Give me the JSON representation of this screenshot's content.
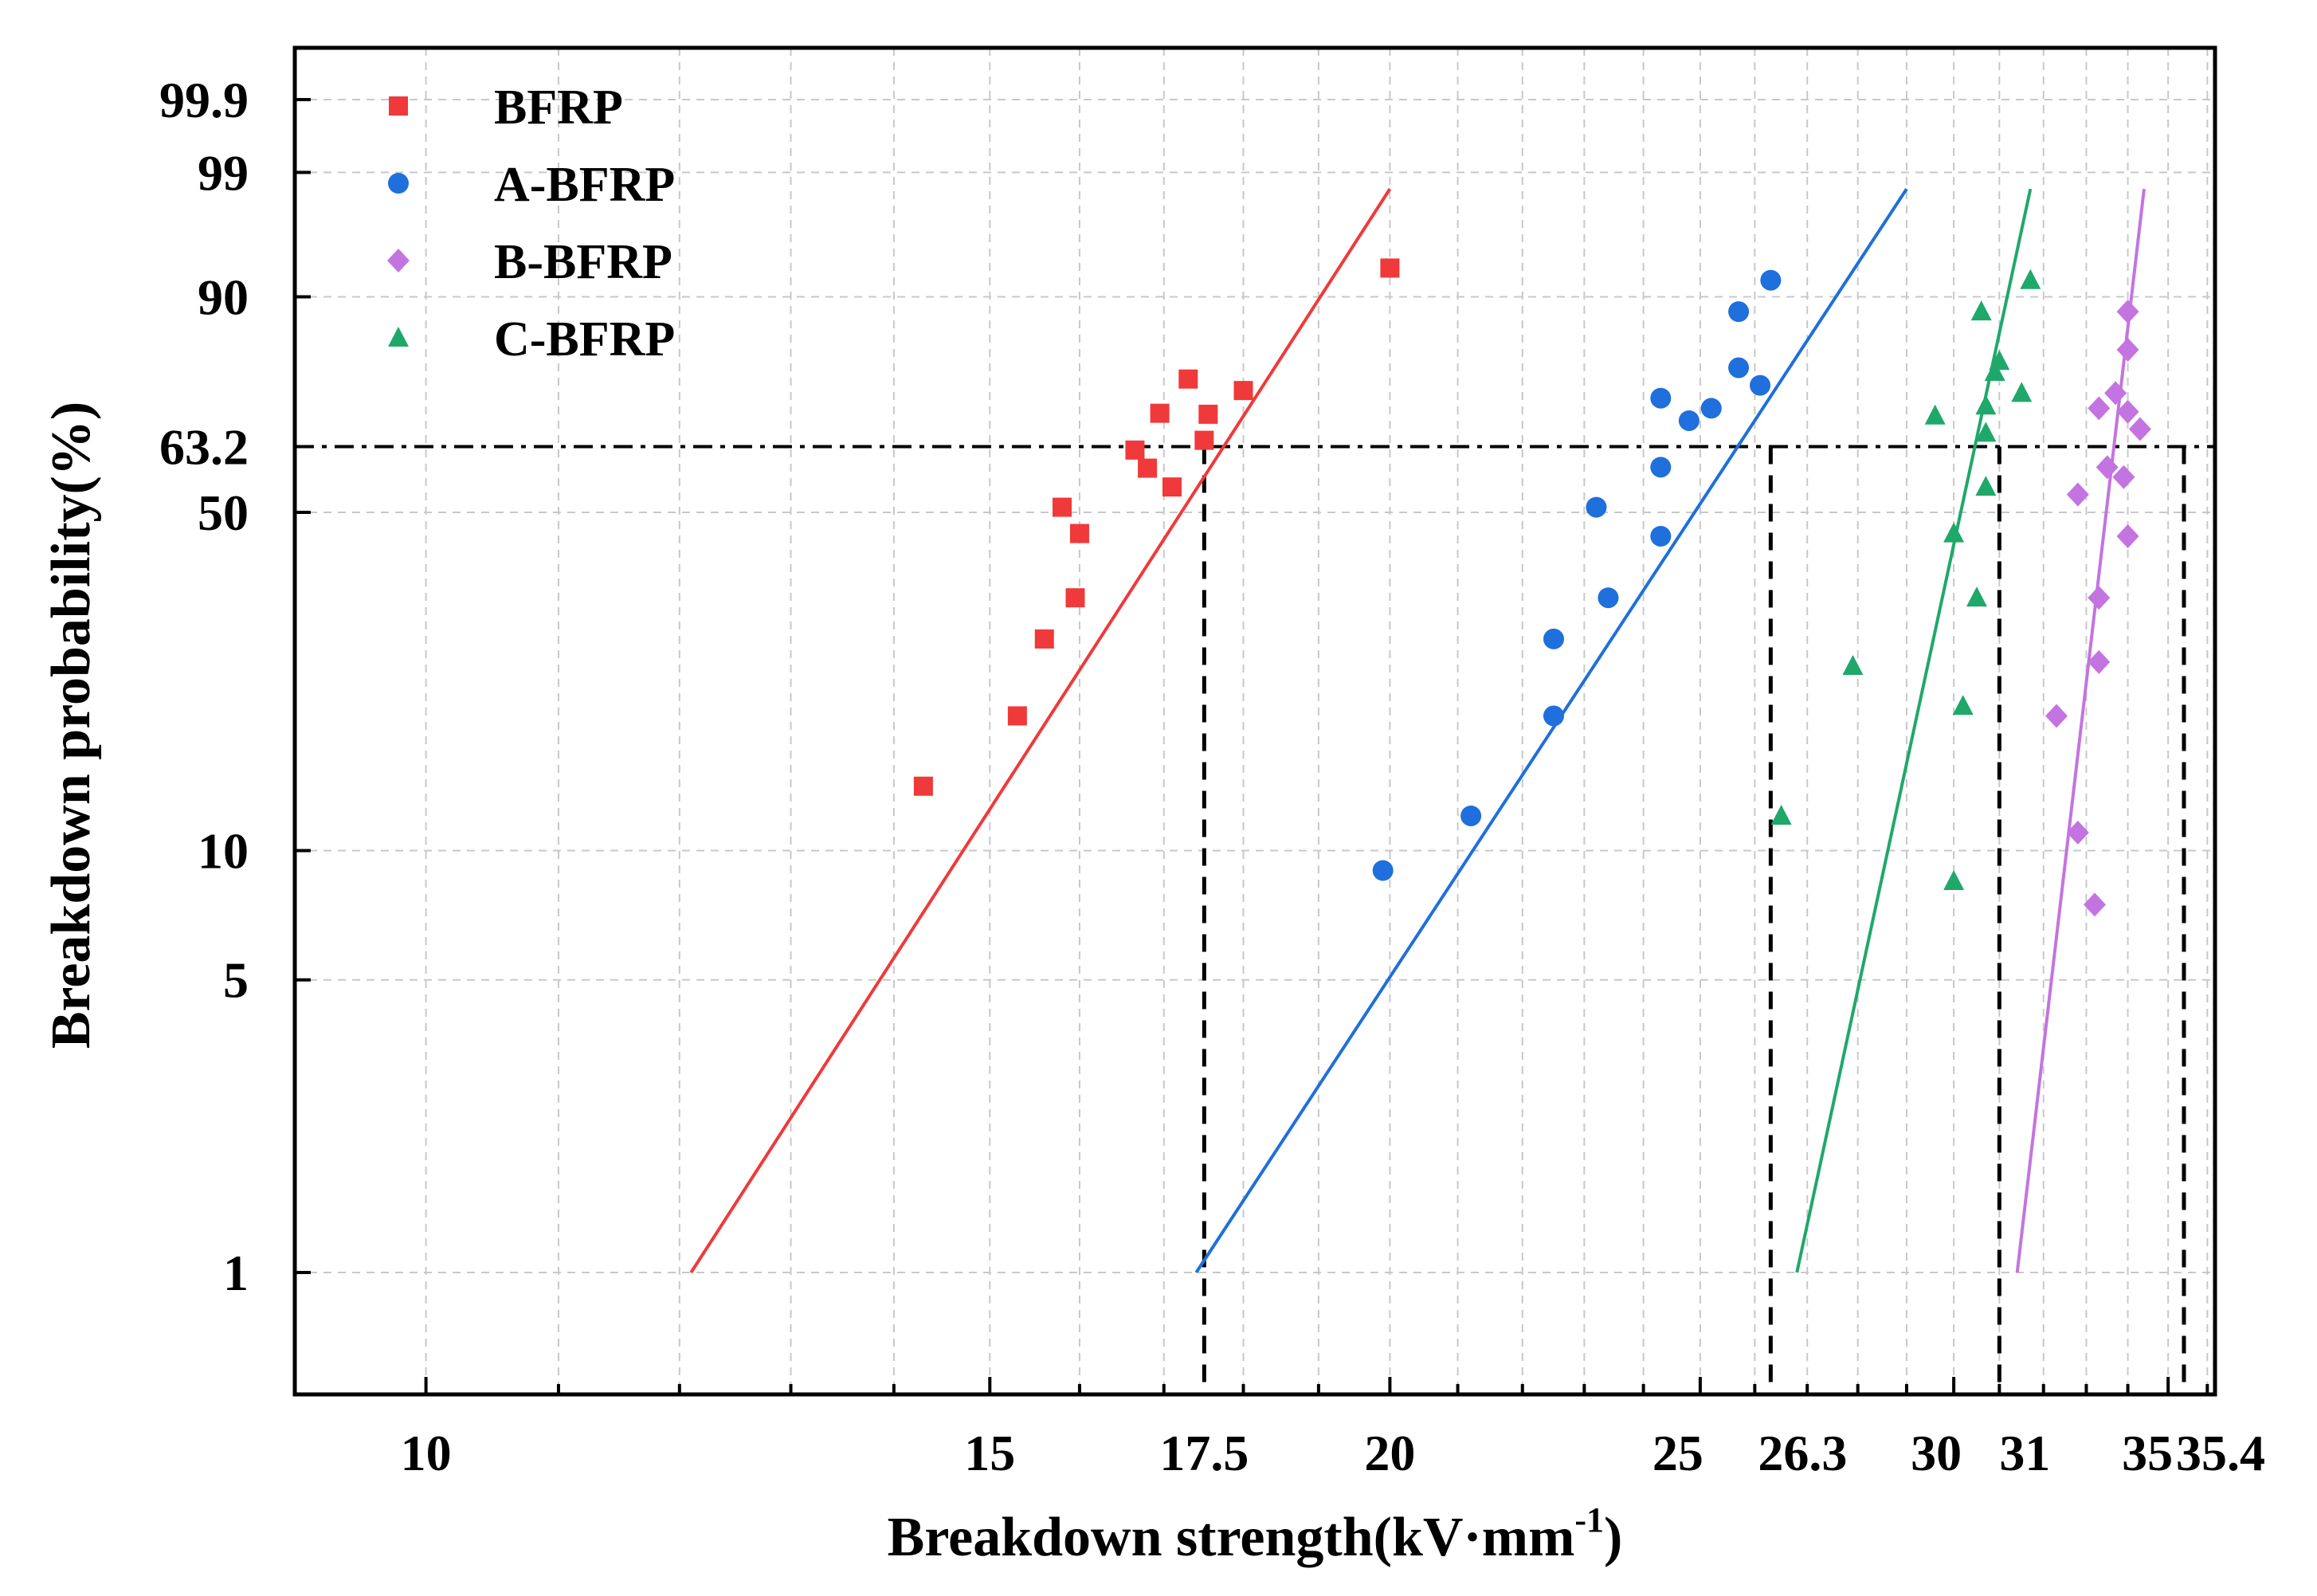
{
  "chart_data": {
    "type": "scatter",
    "title": "",
    "xlabel": "Breakdown strength(kV·mm",
    "xlabel_superscript": "-1",
    "xlabel_close": ")",
    "ylabel": "Breakdown probability(%)",
    "xscale": "log",
    "yscale": "weibull",
    "xlim": [
      9.1,
      36.2
    ],
    "ylim": [
      0.55,
      99.95
    ],
    "grid": true,
    "legend_position": "top-left",
    "x_ticks": [
      {
        "value": 10,
        "label": "10"
      },
      {
        "value": 15,
        "label": "15"
      },
      {
        "value": 17.5,
        "label": "17.5"
      },
      {
        "value": 20,
        "label": "20"
      },
      {
        "value": 25,
        "label": "25"
      },
      {
        "value": 26.3,
        "label": "26.3"
      },
      {
        "value": 30,
        "label": "30"
      },
      {
        "value": 31,
        "label": "31"
      },
      {
        "value": 35,
        "label": "35"
      },
      {
        "value": 35.4,
        "label": "35.4"
      }
    ],
    "y_ticks": [
      {
        "value": 1,
        "label": "1"
      },
      {
        "value": 5,
        "label": "5"
      },
      {
        "value": 10,
        "label": "10"
      },
      {
        "value": 50,
        "label": "50"
      },
      {
        "value": 63.2,
        "label": "63.2"
      },
      {
        "value": 90,
        "label": "90"
      },
      {
        "value": 99,
        "label": "99"
      },
      {
        "value": 99.9,
        "label": "99.9"
      }
    ],
    "reference_probability": 63.2,
    "series": [
      {
        "name": "BFRP",
        "color": "#f0393a",
        "marker": "square",
        "scale_parameter": 17.5,
        "fit": [
          [
            12.1,
            1
          ],
          [
            20.0,
            98.5
          ]
        ],
        "points": [
          [
            14.3,
            14
          ],
          [
            15.3,
            20
          ],
          [
            15.6,
            29
          ],
          [
            15.8,
            51
          ],
          [
            15.95,
            35
          ],
          [
            16.0,
            46
          ],
          [
            16.65,
            62.5
          ],
          [
            16.8,
            58.8
          ],
          [
            16.95,
            70
          ],
          [
            17.5,
            64.5
          ],
          [
            17.1,
            55
          ],
          [
            17.3,
            76.7
          ],
          [
            17.55,
            69.8
          ],
          [
            18.0,
            74.5
          ],
          [
            20.0,
            93.3
          ]
        ]
      },
      {
        "name": "A-BFRP",
        "color": "#1f6fdc",
        "marker": "circle",
        "scale_parameter": 26.3,
        "fit": [
          [
            17.4,
            1
          ],
          [
            29.0,
            98.5
          ]
        ],
        "points": [
          [
            19.9,
            9
          ],
          [
            21.2,
            12
          ],
          [
            22.5,
            20
          ],
          [
            22.5,
            29
          ],
          [
            23.2,
            51
          ],
          [
            23.4,
            35
          ],
          [
            24.3,
            45.5
          ],
          [
            24.3,
            59
          ],
          [
            24.3,
            73
          ],
          [
            24.8,
            68.5
          ],
          [
            25.2,
            71
          ],
          [
            25.7,
            78.8
          ],
          [
            26.1,
            75.5
          ],
          [
            25.7,
            88
          ],
          [
            26.3,
            92
          ]
        ]
      },
      {
        "name": "B-BFRP",
        "color": "#c374e0",
        "marker": "diamond",
        "scale_parameter": 35.4,
        "fit": [
          [
            31.4,
            1
          ],
          [
            34.4,
            98.5
          ]
        ],
        "points": [
          [
            32.3,
            20
          ],
          [
            32.8,
            11
          ],
          [
            32.8,
            53.5
          ],
          [
            33.2,
            7.5
          ],
          [
            33.3,
            26
          ],
          [
            33.3,
            35
          ],
          [
            33.3,
            71
          ],
          [
            33.5,
            59
          ],
          [
            33.7,
            74
          ],
          [
            33.9,
            57
          ],
          [
            34.0,
            82
          ],
          [
            34.0,
            88
          ],
          [
            34.0,
            70.3
          ],
          [
            34.0,
            45.5
          ],
          [
            34.3,
            66.8
          ]
        ]
      },
      {
        "name": "C-BFRP",
        "color": "#1fa86a",
        "marker": "triangle",
        "scale_parameter": 31,
        "fit": [
          [
            26.8,
            1
          ],
          [
            31.7,
            98.5
          ]
        ],
        "points": [
          [
            26.5,
            12
          ],
          [
            27.9,
            25.5
          ],
          [
            29.6,
            69.5
          ],
          [
            30.0,
            8.5
          ],
          [
            30.0,
            46
          ],
          [
            30.2,
            21
          ],
          [
            30.5,
            35
          ],
          [
            30.7,
            55
          ],
          [
            30.7,
            66
          ],
          [
            30.7,
            71.5
          ],
          [
            30.6,
            88
          ],
          [
            30.9,
            78
          ],
          [
            31.0,
            80
          ],
          [
            31.5,
            74
          ],
          [
            31.7,
            92
          ]
        ]
      }
    ]
  }
}
